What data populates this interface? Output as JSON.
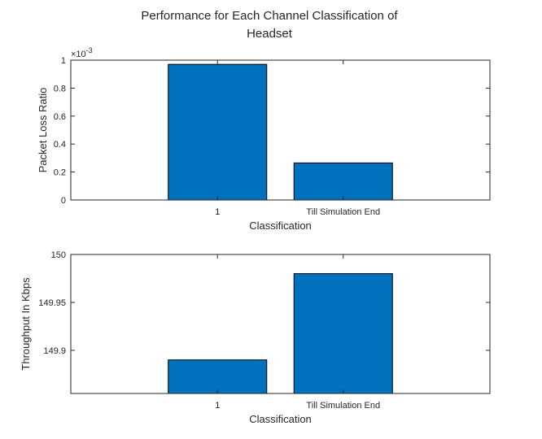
{
  "figure": {
    "title_lines": [
      "Performance for Each Channel Classification of",
      "Headset"
    ]
  },
  "chart_data": [
    {
      "type": "bar",
      "title": "Performance for Each Channel Classification of Headset",
      "categories": [
        "1",
        "Till Simulation End"
      ],
      "values": [
        0.00097,
        0.000265
      ],
      "xlabel": "Classification",
      "ylabel": "Packet Loss Ratio",
      "ylim": [
        0,
        0.001
      ],
      "yticks": [
        0,
        0.2,
        0.4,
        0.6,
        0.8,
        1
      ],
      "ytick_labels": [
        "0",
        "0.2",
        "0.4",
        "0.6",
        "0.8",
        "1"
      ],
      "y_exponent_base": "×10",
      "y_exponent": "-3",
      "y_multiplier": 0.001,
      "bar_color": "#0072BD",
      "grid": false
    },
    {
      "type": "bar",
      "categories": [
        "1",
        "Till Simulation End"
      ],
      "values": [
        149.89,
        149.98
      ],
      "xlabel": "Classification",
      "ylabel": "Throughput In Kbps",
      "ylim": [
        149.855,
        150
      ],
      "yticks": [
        149.9,
        149.95,
        150
      ],
      "ytick_labels": [
        "149.9",
        "149.95",
        "150"
      ],
      "bar_color": "#0072BD",
      "grid": false
    }
  ]
}
